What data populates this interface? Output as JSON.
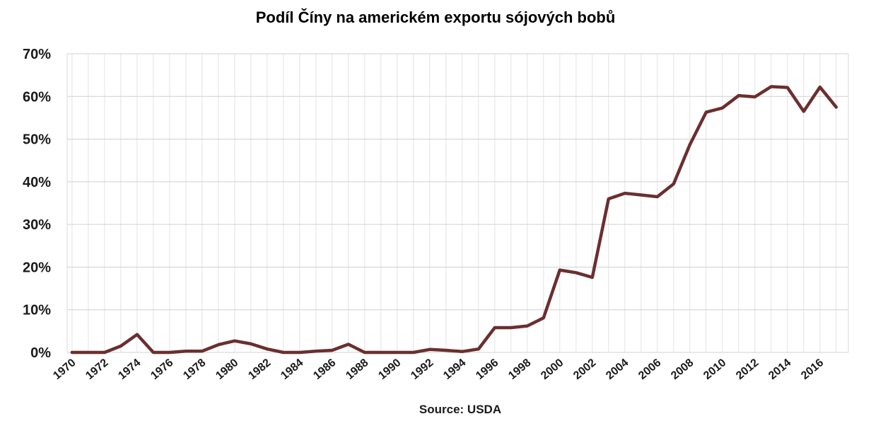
{
  "chart_data": {
    "type": "line",
    "title": "Podíl Číny na americkém exportu sójových bobů",
    "source": "Source: USDA",
    "xlabel": "",
    "ylabel": "",
    "ylim": [
      0,
      70
    ],
    "yticks": [
      "0%",
      "10%",
      "20%",
      "30%",
      "40%",
      "50%",
      "60%",
      "70%"
    ],
    "xticks": [
      "1970",
      "1972",
      "1974",
      "1976",
      "1978",
      "1980",
      "1982",
      "1984",
      "1986",
      "1988",
      "1990",
      "1992",
      "1994",
      "1996",
      "1998",
      "2000",
      "2002",
      "2004",
      "2006",
      "2008",
      "2010",
      "2012",
      "2014",
      "2016"
    ],
    "x": [
      1970,
      1971,
      1972,
      1973,
      1974,
      1975,
      1976,
      1977,
      1978,
      1979,
      1980,
      1981,
      1982,
      1983,
      1984,
      1985,
      1986,
      1987,
      1988,
      1989,
      1990,
      1991,
      1992,
      1993,
      1994,
      1995,
      1996,
      1997,
      1998,
      1999,
      2000,
      2001,
      2002,
      2003,
      2004,
      2005,
      2006,
      2007,
      2008,
      2009,
      2010,
      2011,
      2012,
      2013,
      2014,
      2015,
      2016,
      2017
    ],
    "series": [
      {
        "name": "",
        "color": "#6b2f2f",
        "values": [
          0,
          0,
          0,
          1.5,
          4.2,
          0,
          0,
          0.3,
          0.3,
          1.8,
          2.7,
          2.0,
          0.8,
          0,
          0,
          0.3,
          0.5,
          1.9,
          0,
          0,
          0,
          0,
          0.7,
          0.5,
          0.2,
          0.8,
          5.8,
          5.8,
          6.2,
          8.1,
          19.3,
          18.7,
          17.6,
          36.0,
          37.3,
          36.9,
          36.5,
          39.5,
          48.7,
          56.3,
          57.3,
          60.2,
          59.9,
          62.3,
          62.1,
          56.5,
          62.2,
          57.5
        ]
      }
    ],
    "grid": true,
    "legend": "none"
  }
}
